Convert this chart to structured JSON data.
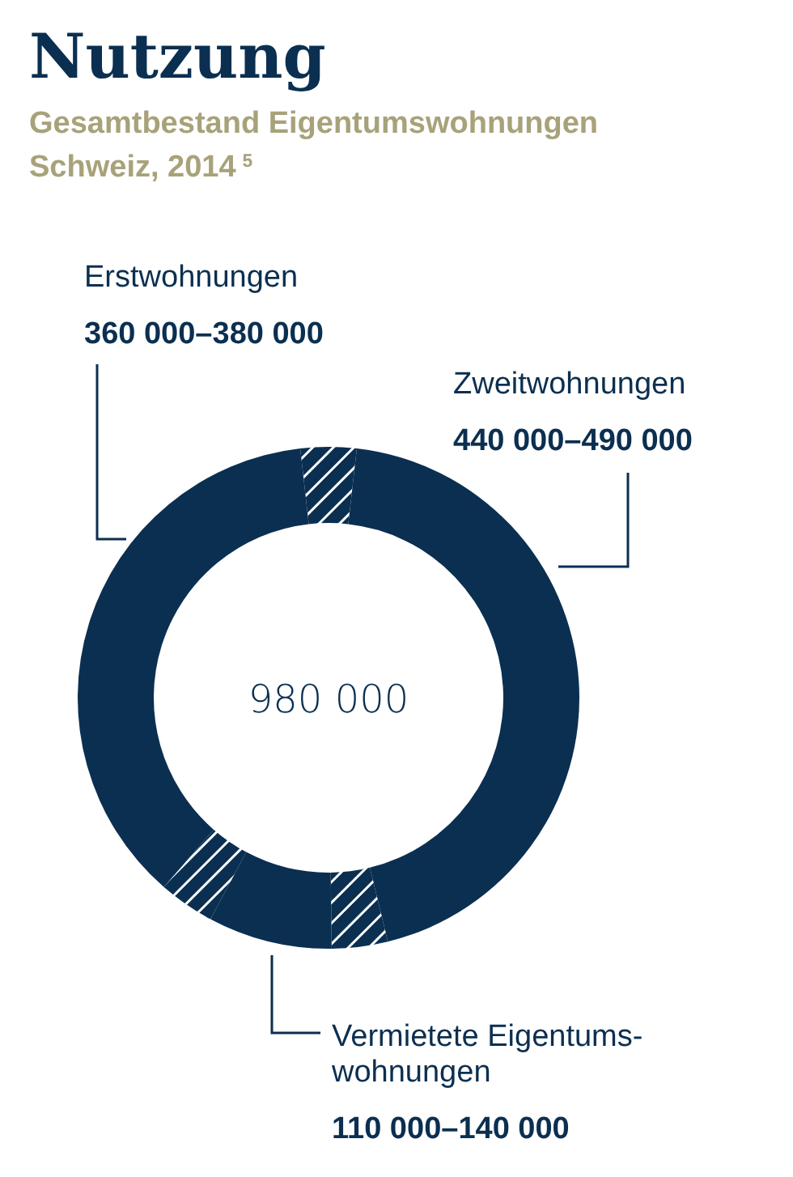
{
  "chart_data": {
    "type": "donut",
    "title": "Nutzung",
    "subtitle": "Gesamtbestand Eigentumswohnungen Schweiz, 2014$^{5}$",
    "categories": [
      null,
      "Zweitwohnungen",
      null,
      "Vermietete Eigentums-\nwohnungen",
      null,
      "Erstwohnungen"
    ],
    "values": [
      3.6,
      44.4,
      3.6,
      8.0,
      3.6,
      36.8
    ],
    "colors": [
      "#0b2f50",
      "#0b2f50",
      "#0b2f50",
      "#0b2f50",
      "#0b2f50",
      "#0b2f50"
    ],
    "annotations": [
      "980 000",
      "440 000–490 000",
      "110 000–140 000",
      "360 000–380 000"
    ]
  }
}
